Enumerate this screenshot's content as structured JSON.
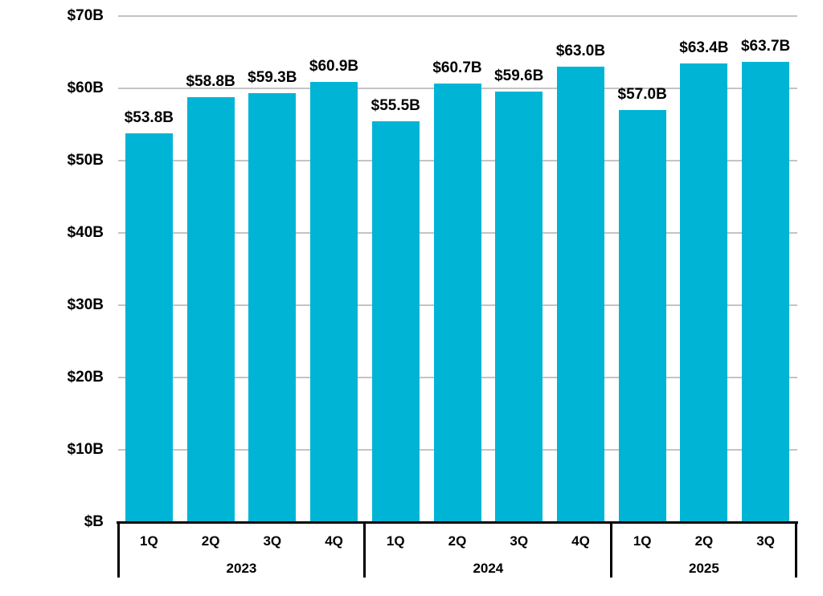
{
  "chart_data": {
    "type": "bar",
    "title": "",
    "xlabel": "",
    "ylabel": "",
    "currency_unit": "USD billions",
    "ylim": [
      0,
      70
    ],
    "y_tick_interval": 10,
    "y_ticks": [
      {
        "value": 0,
        "label": "$B"
      },
      {
        "value": 10,
        "label": "$10B"
      },
      {
        "value": 20,
        "label": "$20B"
      },
      {
        "value": 30,
        "label": "$30B"
      },
      {
        "value": 40,
        "label": "$40B"
      },
      {
        "value": 50,
        "label": "$50B"
      },
      {
        "value": 60,
        "label": "$60B"
      },
      {
        "value": 70,
        "label": "$70B"
      }
    ],
    "grid": true,
    "legend": "none",
    "bar_color": "#00b4d5",
    "gridline_color": "#c4c4c4",
    "axis_color": "#000000",
    "groups": [
      {
        "year": "2023",
        "categories": [
          "1Q",
          "2Q",
          "3Q",
          "4Q"
        ],
        "values": [
          53.8,
          58.8,
          59.3,
          60.9
        ],
        "data_labels": [
          "$53.8B",
          "$58.8B",
          "$59.3B",
          "$60.9B"
        ]
      },
      {
        "year": "2024",
        "categories": [
          "1Q",
          "2Q",
          "3Q",
          "4Q"
        ],
        "values": [
          55.5,
          60.7,
          59.6,
          63.0
        ],
        "data_labels": [
          "$55.5B",
          "$60.7B",
          "$59.6B",
          "$63.0B"
        ]
      },
      {
        "year": "2025",
        "categories": [
          "1Q",
          "2Q",
          "3Q"
        ],
        "values": [
          57.0,
          63.4,
          63.7
        ],
        "data_labels": [
          "$57.0B",
          "$63.4B",
          "$63.7B"
        ]
      }
    ]
  }
}
